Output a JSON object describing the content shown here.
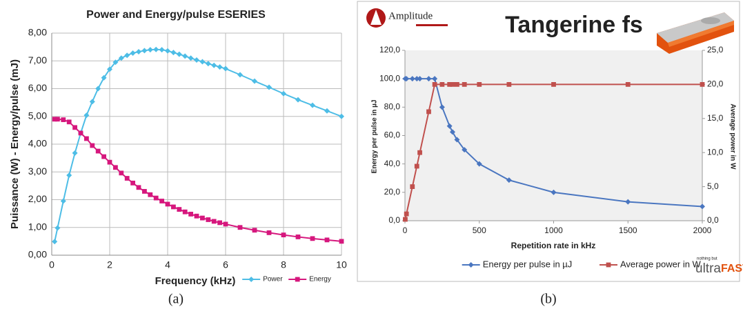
{
  "chart_data": [
    {
      "type": "line",
      "title": "Power and Energy/pulse ESERIES",
      "y_label": "Puissance (W) - Energy/pulse (mJ)",
      "x_label": "Frequency (kHz)",
      "caption": "(a)",
      "x": [
        0.1,
        0.2,
        0.4,
        0.6,
        0.8,
        1.0,
        1.2,
        1.4,
        1.6,
        1.8,
        2.0,
        2.2,
        2.4,
        2.6,
        2.8,
        3.0,
        3.2,
        3.4,
        3.6,
        3.8,
        4.0,
        4.2,
        4.4,
        4.6,
        4.8,
        5.0,
        5.2,
        5.4,
        5.6,
        5.8,
        6.0,
        6.5,
        7,
        7.5,
        8,
        8.5,
        9,
        9.5,
        10
      ],
      "series": [
        {
          "name": "Power",
          "color": "#4dbde6",
          "marker": "diamond",
          "values": [
            0.49,
            0.98,
            1.95,
            2.88,
            3.68,
            4.4,
            5.04,
            5.53,
            6.0,
            6.39,
            6.7,
            6.95,
            7.1,
            7.2,
            7.28,
            7.33,
            7.37,
            7.4,
            7.41,
            7.4,
            7.36,
            7.3,
            7.24,
            7.17,
            7.1,
            7.03,
            6.97,
            6.9,
            6.84,
            6.78,
            6.72,
            6.5,
            6.27,
            6.05,
            5.82,
            5.6,
            5.4,
            5.2,
            5.0
          ]
        },
        {
          "name": "Energy",
          "color": "#d6177d",
          "marker": "square",
          "values": [
            4.9,
            4.9,
            4.88,
            4.8,
            4.6,
            4.4,
            4.2,
            3.95,
            3.75,
            3.55,
            3.35,
            3.16,
            2.96,
            2.77,
            2.6,
            2.44,
            2.3,
            2.18,
            2.06,
            1.95,
            1.84,
            1.74,
            1.65,
            1.56,
            1.48,
            1.41,
            1.34,
            1.28,
            1.22,
            1.17,
            1.12,
            1.0,
            0.9,
            0.81,
            0.73,
            0.66,
            0.6,
            0.55,
            0.5
          ]
        }
      ],
      "xlim": [
        0,
        10
      ],
      "xticks": [
        0,
        2,
        4,
        6,
        8,
        10
      ],
      "ylim": [
        0,
        8
      ],
      "yticks": [
        {
          "value": 0,
          "label": "0,00"
        },
        {
          "value": 1,
          "label": "1,00"
        },
        {
          "value": 2,
          "label": "2,00"
        },
        {
          "value": 3,
          "label": "3,00"
        },
        {
          "value": 4,
          "label": "4,00"
        },
        {
          "value": 5,
          "label": "5,00"
        },
        {
          "value": 6,
          "label": "6,00"
        },
        {
          "value": 7,
          "label": "7,00"
        },
        {
          "value": 8,
          "label": "8,00"
        }
      ],
      "grid": true,
      "legend": "bottom-right"
    },
    {
      "type": "line",
      "title": "Tangerine fs",
      "logo": "Amplitude",
      "footer_logo_small": "nothing but",
      "footer_logo": "ultra",
      "footer_logo_accent": "FAST",
      "y_label": "Energy per pulse in µJ",
      "y2_label": "Average power in W",
      "x_label": "Repetition rate in kHz",
      "caption": "(b)",
      "x": [
        2,
        10,
        50,
        80,
        100,
        160,
        200,
        250,
        300,
        320,
        350,
        400,
        500,
        700,
        1000,
        1500,
        2000
      ],
      "series": [
        {
          "name": "Energy per pulse in µJ",
          "color": "#4a76c0",
          "marker": "diamond",
          "values": [
            100,
            100,
            100,
            100,
            100,
            100,
            100,
            80,
            66.7,
            62.5,
            57.1,
            50,
            40,
            28.6,
            20,
            13.3,
            10
          ]
        },
        {
          "name": "Average power in W",
          "color": "#c0504d",
          "marker": "square",
          "axis": "y2",
          "values": [
            0.2,
            1,
            5,
            8,
            10,
            16,
            20,
            20,
            20,
            20,
            20,
            20,
            20,
            20,
            20,
            20,
            20
          ]
        }
      ],
      "xlim": [
        0,
        2000
      ],
      "xticks": [
        0,
        500,
        1000,
        1500,
        2000
      ],
      "ylim": [
        0,
        120
      ],
      "yticks": [
        {
          "value": 0,
          "label": "0,0"
        },
        {
          "value": 20,
          "label": "20,0"
        },
        {
          "value": 40,
          "label": "40,0"
        },
        {
          "value": 60,
          "label": "60,0"
        },
        {
          "value": 80,
          "label": "80,0"
        },
        {
          "value": 100,
          "label": "100,0"
        },
        {
          "value": 120,
          "label": "120,0"
        }
      ],
      "y2lim": [
        0,
        25
      ],
      "y2ticks": [
        {
          "value": 0,
          "label": "0,0"
        },
        {
          "value": 5,
          "label": "5,0"
        },
        {
          "value": 10,
          "label": "10,0"
        },
        {
          "value": 15,
          "label": "15,0"
        },
        {
          "value": 20,
          "label": "20,0"
        },
        {
          "value": 25,
          "label": "25,0"
        }
      ],
      "grid": false,
      "legend": "bottom"
    }
  ]
}
